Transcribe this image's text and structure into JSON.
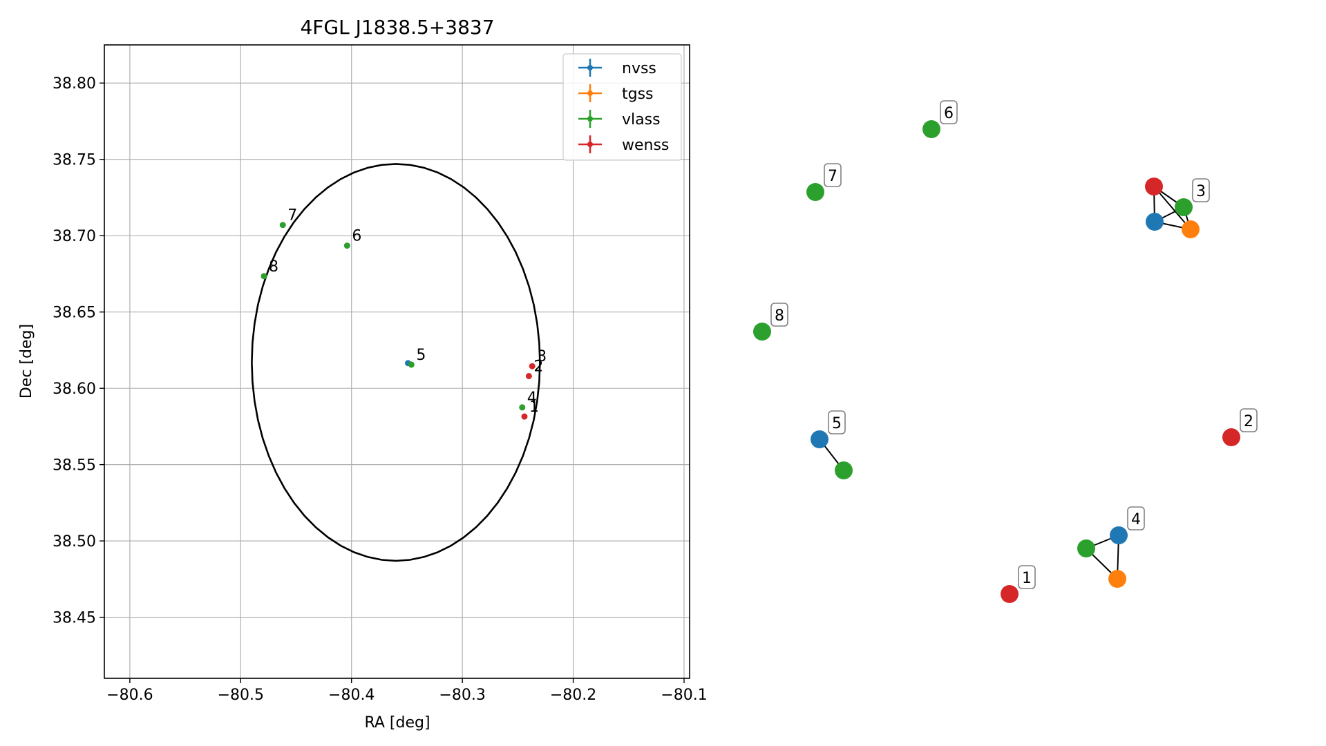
{
  "chart_data": [
    {
      "type": "scatter",
      "title": "4FGL J1838.5+3837",
      "xlabel": "RA [deg]",
      "ylabel": "Dec [deg]",
      "xlim": [
        -80.623,
        -80.095
      ],
      "ylim": [
        38.41,
        38.825
      ],
      "xticks": [
        -80.6,
        -80.5,
        -80.4,
        -80.3,
        -80.2,
        -80.1
      ],
      "xtick_labels": [
        "−80.6",
        "−80.5",
        "−80.4",
        "−80.3",
        "−80.2",
        "−80.1"
      ],
      "yticks": [
        38.45,
        38.5,
        38.55,
        38.6,
        38.65,
        38.7,
        38.75,
        38.8
      ],
      "ytick_labels": [
        "38.45",
        "38.50",
        "38.55",
        "38.60",
        "38.65",
        "38.70",
        "38.75",
        "38.80"
      ],
      "grid": true,
      "legend_position": "top-right",
      "circle": {
        "ra": -80.36,
        "dec": 38.617,
        "radius": 0.13
      },
      "series": [
        {
          "name": "nvss",
          "color": "#1f77b4",
          "points": [
            {
              "ra": -80.349,
              "dec": 38.6165
            }
          ]
        },
        {
          "name": "tgss",
          "color": "#ff7f0e",
          "points": []
        },
        {
          "name": "vlass",
          "color": "#2ca02c",
          "points": [
            {
              "ra": -80.346,
              "dec": 38.6155
            },
            {
              "ra": -80.246,
              "dec": 38.5875
            },
            {
              "ra": -80.404,
              "dec": 38.6935
            },
            {
              "ra": -80.462,
              "dec": 38.707
            },
            {
              "ra": -80.479,
              "dec": 38.6735
            }
          ]
        },
        {
          "name": "wenss",
          "color": "#d62728",
          "points": [
            {
              "ra": -80.244,
              "dec": 38.5815
            },
            {
              "ra": -80.24,
              "dec": 38.608
            },
            {
              "ra": -80.237,
              "dec": 38.6145
            }
          ]
        }
      ],
      "point_labels": [
        {
          "text": "1",
          "ra": -80.244,
          "dec": 38.5815
        },
        {
          "text": "2",
          "ra": -80.24,
          "dec": 38.608
        },
        {
          "text": "3",
          "ra": -80.237,
          "dec": 38.6145
        },
        {
          "text": "4",
          "ra": -80.246,
          "dec": 38.5875
        },
        {
          "text": "5",
          "ra": -80.346,
          "dec": 38.6155
        },
        {
          "text": "6",
          "ra": -80.404,
          "dec": 38.6935
        },
        {
          "text": "7",
          "ra": -80.462,
          "dec": 38.707
        },
        {
          "text": "8",
          "ra": -80.479,
          "dec": 38.6735
        }
      ]
    },
    {
      "type": "diagram",
      "description_note": "network graph of catalog matches",
      "nodes": [
        {
          "id": "r1",
          "catalog": "wenss",
          "color": "#d62728"
        },
        {
          "id": "r2",
          "catalog": "wenss",
          "color": "#d62728"
        },
        {
          "id": "r3",
          "catalog": "wenss",
          "color": "#d62728"
        },
        {
          "id": "g3",
          "catalog": "vlass",
          "color": "#2ca02c"
        },
        {
          "id": "b3",
          "catalog": "nvss",
          "color": "#1f77b4"
        },
        {
          "id": "o3",
          "catalog": "tgss",
          "color": "#ff7f0e"
        },
        {
          "id": "b4",
          "catalog": "nvss",
          "color": "#1f77b4"
        },
        {
          "id": "g4",
          "catalog": "vlass",
          "color": "#2ca02c"
        },
        {
          "id": "o4",
          "catalog": "tgss",
          "color": "#ff7f0e"
        },
        {
          "id": "b5",
          "catalog": "nvss",
          "color": "#1f77b4"
        },
        {
          "id": "g5",
          "catalog": "vlass",
          "color": "#2ca02c"
        },
        {
          "id": "g6",
          "catalog": "vlass",
          "color": "#2ca02c"
        },
        {
          "id": "g7",
          "catalog": "vlass",
          "color": "#2ca02c"
        },
        {
          "id": "g8",
          "catalog": "vlass",
          "color": "#2ca02c"
        }
      ],
      "edges": [
        [
          "r3",
          "b3"
        ],
        [
          "r3",
          "g3"
        ],
        [
          "r3",
          "o3"
        ],
        [
          "b3",
          "o3"
        ],
        [
          "b3",
          "g3"
        ],
        [
          "g3",
          "o3"
        ],
        [
          "b4",
          "g4"
        ],
        [
          "b4",
          "o4"
        ],
        [
          "g4",
          "o4"
        ],
        [
          "b5",
          "g5"
        ]
      ],
      "labels": [
        {
          "text": "1",
          "node": "r1"
        },
        {
          "text": "2",
          "node": "r2"
        },
        {
          "text": "3",
          "node": "g3"
        },
        {
          "text": "4",
          "node": "b4"
        },
        {
          "text": "5",
          "node": "b5"
        },
        {
          "text": "6",
          "node": "g6"
        },
        {
          "text": "7",
          "node": "g7"
        },
        {
          "text": "8",
          "node": "g8"
        }
      ]
    }
  ]
}
